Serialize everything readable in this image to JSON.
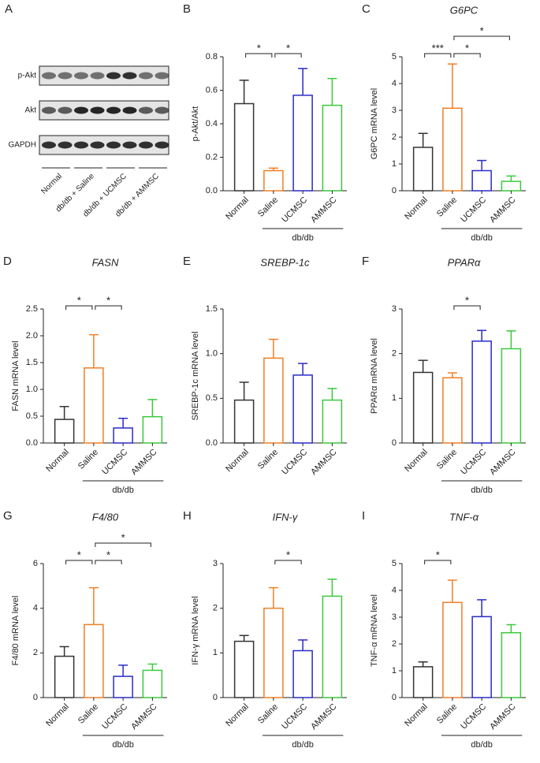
{
  "blot": {
    "panel": "A",
    "rows": [
      "p-Akt",
      "Akt",
      "GAPDH"
    ],
    "lanes": [
      "Normal",
      "db/db + Saline",
      "db/db + UCMSC",
      "db/db + AMMSC"
    ]
  },
  "chart_data": [
    {
      "type": "bar",
      "panel": "B",
      "ylabel": "p-Akt/Akt",
      "categories": [
        "Normal",
        "Saline",
        "UCMSC",
        "AMMSC"
      ],
      "group_label": "db/db",
      "values": [
        0.52,
        0.12,
        0.57,
        0.51
      ],
      "errors": [
        0.14,
        0.015,
        0.16,
        0.16
      ],
      "colors": [
        "#333333",
        "#f07f26",
        "#2a2ac8",
        "#3cc83c"
      ],
      "ylim": [
        0,
        0.8
      ],
      "yticks": [
        {
          "value": 0,
          "label": "0.0"
        },
        0.2,
        0.4,
        0.6,
        0.8
      ],
      "brackets": [
        {
          "between": [
            "Normal",
            "Saline"
          ],
          "label": "*"
        },
        {
          "between": [
            "Saline",
            "UCMSC"
          ],
          "label": "*"
        }
      ]
    },
    {
      "type": "bar",
      "panel": "C",
      "title": "G6PC",
      "ylabel": "G6PC mRNA level",
      "categories": [
        "Normal",
        "Saline",
        "UCMSC",
        "AMMSC"
      ],
      "group_label": "db/db",
      "values": [
        1.62,
        3.08,
        0.75,
        0.35
      ],
      "errors": [
        0.52,
        1.65,
        0.38,
        0.2
      ],
      "colors": [
        "#333333",
        "#f07f26",
        "#2a2ac8",
        "#3cc83c"
      ],
      "ylim": [
        0,
        5
      ],
      "yticks": [
        0,
        1,
        2,
        3,
        4,
        5
      ],
      "brackets": [
        {
          "between": [
            "Normal",
            "Saline"
          ],
          "label": "***"
        },
        {
          "between": [
            "Saline",
            "UCMSC"
          ],
          "label": "*"
        },
        {
          "between": [
            "Saline",
            "AMMSC"
          ],
          "label": "*"
        }
      ]
    },
    {
      "type": "bar",
      "panel": "D",
      "title": "FASN",
      "ylabel": "FASN mRNA level",
      "categories": [
        "Normal",
        "Saline",
        "UCMSC",
        "AMMSC"
      ],
      "group_label": "db/db",
      "values": [
        0.44,
        1.4,
        0.28,
        0.49
      ],
      "errors": [
        0.24,
        0.62,
        0.18,
        0.32
      ],
      "colors": [
        "#333333",
        "#f07f26",
        "#2a2ac8",
        "#3cc83c"
      ],
      "ylim": [
        0,
        2.5
      ],
      "yticks": [
        {
          "value": 0,
          "label": "0.0"
        },
        0.5,
        {
          "value": 1,
          "label": "1.0"
        },
        1.5,
        {
          "value": 2,
          "label": "2.0"
        },
        2.5
      ],
      "brackets": [
        {
          "between": [
            "Normal",
            "Saline"
          ],
          "label": "*"
        },
        {
          "between": [
            "Saline",
            "UCMSC"
          ],
          "label": "*"
        }
      ]
    },
    {
      "type": "bar",
      "panel": "E",
      "title": "SREBP-1c",
      "ylabel": "SREBP-1c mRNA level",
      "categories": [
        "Normal",
        "Saline",
        "UCMSC",
        "AMMSC"
      ],
      "values": [
        0.48,
        0.95,
        0.76,
        0.48
      ],
      "errors": [
        0.2,
        0.21,
        0.13,
        0.13
      ],
      "colors": [
        "#333333",
        "#f07f26",
        "#2a2ac8",
        "#3cc83c"
      ],
      "ylim": [
        0,
        1.5
      ],
      "yticks": [
        {
          "value": 0,
          "label": "0.0"
        },
        0.5,
        {
          "value": 1,
          "label": "1.0"
        },
        1.5
      ],
      "brackets": []
    },
    {
      "type": "bar",
      "panel": "F",
      "title": "PPARα",
      "ylabel": "PPARα mRNA level",
      "categories": [
        "Normal",
        "Saline",
        "UCMSC",
        "AMMSC"
      ],
      "group_label": "db/db",
      "values": [
        1.58,
        1.46,
        2.28,
        2.11
      ],
      "errors": [
        0.27,
        0.11,
        0.24,
        0.4
      ],
      "colors": [
        "#333333",
        "#f07f26",
        "#2a2ac8",
        "#3cc83c"
      ],
      "ylim": [
        0,
        3
      ],
      "yticks": [
        0,
        1,
        2,
        3
      ],
      "brackets": [
        {
          "between": [
            "Saline",
            "UCMSC"
          ],
          "label": "*"
        }
      ]
    },
    {
      "type": "bar",
      "panel": "G",
      "title": "F4/80",
      "ylabel": "F4/80 mRNA level",
      "categories": [
        "Normal",
        "Saline",
        "UCMSC",
        "AMMSC"
      ],
      "group_label": "db/db",
      "values": [
        1.85,
        3.27,
        0.95,
        1.22
      ],
      "errors": [
        0.43,
        1.65,
        0.5,
        0.28
      ],
      "colors": [
        "#333333",
        "#f07f26",
        "#2a2ac8",
        "#3cc83c"
      ],
      "ylim": [
        0,
        6
      ],
      "yticks": [
        0,
        2,
        4,
        6
      ],
      "brackets": [
        {
          "between": [
            "Normal",
            "Saline"
          ],
          "label": "*"
        },
        {
          "between": [
            "Saline",
            "UCMSC"
          ],
          "label": "*"
        },
        {
          "between": [
            "Saline",
            "AMMSC"
          ],
          "label": "*"
        }
      ]
    },
    {
      "type": "bar",
      "panel": "H",
      "title": "IFN-γ",
      "ylabel": "IFN-γ mRNA level",
      "categories": [
        "Normal",
        "Saline",
        "UCMSC",
        "AMMSC"
      ],
      "group_label": "db/db",
      "values": [
        1.26,
        2.0,
        1.05,
        2.27
      ],
      "errors": [
        0.13,
        0.46,
        0.24,
        0.38
      ],
      "colors": [
        "#333333",
        "#f07f26",
        "#2a2ac8",
        "#3cc83c"
      ],
      "ylim": [
        0,
        3
      ],
      "yticks": [
        0,
        1,
        2,
        3
      ],
      "brackets": [
        {
          "between": [
            "Saline",
            "UCMSC"
          ],
          "label": "*"
        }
      ]
    },
    {
      "type": "bar",
      "panel": "I",
      "title": "TNF-α",
      "ylabel": "TNF-α mRNA level",
      "categories": [
        "Normal",
        "Saline",
        "UCMSC",
        "AMMSC"
      ],
      "group_label": "db/db",
      "values": [
        1.15,
        3.55,
        3.02,
        2.42
      ],
      "errors": [
        0.18,
        0.83,
        0.63,
        0.3
      ],
      "colors": [
        "#333333",
        "#f07f26",
        "#2a2ac8",
        "#3cc83c"
      ],
      "ylim": [
        0,
        5
      ],
      "yticks": [
        0,
        1,
        2,
        3,
        4,
        5
      ],
      "brackets": [
        {
          "between": [
            "Normal",
            "Saline"
          ],
          "label": "*"
        }
      ]
    }
  ]
}
